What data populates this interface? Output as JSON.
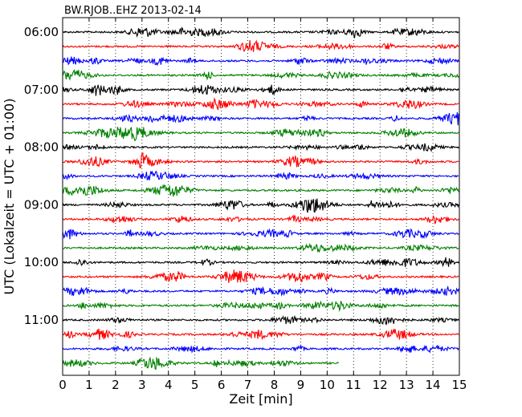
{
  "chart_data": {
    "type": "line",
    "title": "BW.RJOB..EHZ 2013-02-14",
    "xlabel": "Zeit  [min]",
    "ylabel": "UTC (Lokalzeit = UTC + 01:00)",
    "xlim": [
      0,
      15
    ],
    "x_ticks": [
      "0",
      "1",
      "2",
      "3",
      "4",
      "5",
      "6",
      "7",
      "8",
      "9",
      "10",
      "11",
      "12",
      "13",
      "14",
      "15"
    ],
    "y_ticks": [
      "06:00",
      "07:00",
      "08:00",
      "09:00",
      "10:00",
      "11:00"
    ],
    "grid": "vertical dotted",
    "trace_colors": [
      "#000000",
      "#ff0000",
      "#0000ff",
      "#008000"
    ],
    "traces": [
      {
        "start": "06:00",
        "x_end": 15
      },
      {
        "start": "06:15",
        "x_end": 15
      },
      {
        "start": "06:30",
        "x_end": 15
      },
      {
        "start": "06:45",
        "x_end": 15
      },
      {
        "start": "07:00",
        "x_end": 15
      },
      {
        "start": "07:15",
        "x_end": 15
      },
      {
        "start": "07:30",
        "x_end": 15
      },
      {
        "start": "07:45",
        "x_end": 15
      },
      {
        "start": "08:00",
        "x_end": 15
      },
      {
        "start": "08:15",
        "x_end": 15
      },
      {
        "start": "08:30",
        "x_end": 15
      },
      {
        "start": "08:45",
        "x_end": 15
      },
      {
        "start": "09:00",
        "x_end": 15
      },
      {
        "start": "09:15",
        "x_end": 15
      },
      {
        "start": "09:30",
        "x_end": 15
      },
      {
        "start": "09:45",
        "x_end": 15
      },
      {
        "start": "10:00",
        "x_end": 15
      },
      {
        "start": "10:15",
        "x_end": 15
      },
      {
        "start": "10:30",
        "x_end": 15
      },
      {
        "start": "10:45",
        "x_end": 15
      },
      {
        "start": "11:00",
        "x_end": 15
      },
      {
        "start": "11:15",
        "x_end": 15
      },
      {
        "start": "11:30",
        "x_end": 15
      },
      {
        "start": "11:45",
        "x_end": 10.45
      }
    ]
  }
}
